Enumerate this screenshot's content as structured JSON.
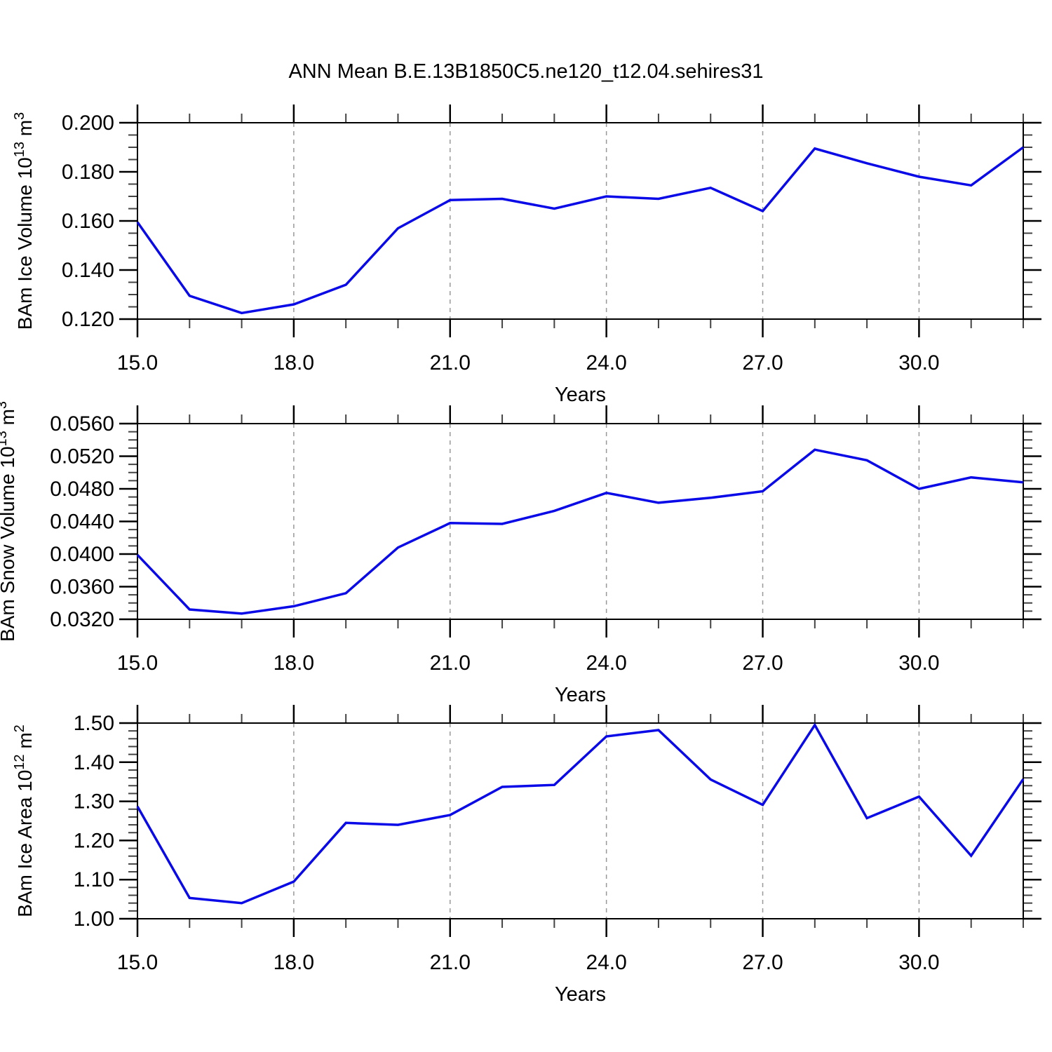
{
  "page": {
    "title": "ANN Mean B.E.13B1850C5.ne120_t12.04.sehires31",
    "background_color": "#ffffff",
    "line_color": "#0a0ae8",
    "grid_color": "#999999",
    "frame_color": "#000000"
  },
  "chart_data": [
    {
      "type": "line",
      "name": "ice-volume",
      "ylabel_plain": "BAm Ice Volume 10^13 m^3",
      "ylabel_parts": [
        {
          "text": "BAm Ice Volume 10",
          "sup": false
        },
        {
          "text": "13",
          "sup": true
        },
        {
          "text": " m",
          "sup": false
        },
        {
          "text": "3",
          "sup": true
        }
      ],
      "xlabel": "Years",
      "x": [
        15,
        16,
        17,
        18,
        19,
        20,
        21,
        22,
        23,
        24,
        25,
        26,
        27,
        28,
        29,
        30,
        31,
        32
      ],
      "values": [
        0.1595,
        0.1295,
        0.1225,
        0.126,
        0.134,
        0.157,
        0.1685,
        0.169,
        0.165,
        0.17,
        0.169,
        0.1735,
        0.164,
        0.1895,
        0.1835,
        0.178,
        0.1745,
        0.19
      ],
      "xlim": [
        15,
        32
      ],
      "ylim": [
        0.12,
        0.2
      ],
      "xticks": [
        {
          "v": 15,
          "label": "15.0"
        },
        {
          "v": 18,
          "label": "18.0"
        },
        {
          "v": 21,
          "label": "21.0"
        },
        {
          "v": 24,
          "label": "24.0"
        },
        {
          "v": 27,
          "label": "27.0"
        },
        {
          "v": 30,
          "label": "30.0"
        }
      ],
      "xtick_minor_step": 1,
      "yticks": [
        {
          "v": 0.12,
          "label": "0.120"
        },
        {
          "v": 0.14,
          "label": "0.140"
        },
        {
          "v": 0.16,
          "label": "0.160"
        },
        {
          "v": 0.18,
          "label": "0.180"
        },
        {
          "v": 0.2,
          "label": "0.200"
        }
      ],
      "ytick_minor_step": 0.005,
      "gridlines_x": [
        18,
        21,
        24,
        27,
        30
      ],
      "grid_on": true,
      "legend": "none"
    },
    {
      "type": "line",
      "name": "snow-volume",
      "ylabel_plain": "BAm Snow Volume 10^13 m^3",
      "ylabel_parts": [
        {
          "text": "BAm Snow Volume 10",
          "sup": false
        },
        {
          "text": "13",
          "sup": true
        },
        {
          "text": " m",
          "sup": false
        },
        {
          "text": "3",
          "sup": true
        }
      ],
      "xlabel": "Years",
      "x": [
        15,
        16,
        17,
        18,
        19,
        20,
        21,
        22,
        23,
        24,
        25,
        26,
        27,
        28,
        29,
        30,
        31,
        32
      ],
      "values": [
        0.0399,
        0.0332,
        0.0327,
        0.0336,
        0.0352,
        0.0408,
        0.0438,
        0.0437,
        0.0453,
        0.0475,
        0.0463,
        0.0469,
        0.0477,
        0.0528,
        0.0515,
        0.048,
        0.0494,
        0.0488
      ],
      "xlim": [
        15,
        32
      ],
      "ylim": [
        0.032,
        0.056
      ],
      "xticks": [
        {
          "v": 15,
          "label": "15.0"
        },
        {
          "v": 18,
          "label": "18.0"
        },
        {
          "v": 21,
          "label": "21.0"
        },
        {
          "v": 24,
          "label": "24.0"
        },
        {
          "v": 27,
          "label": "27.0"
        },
        {
          "v": 30,
          "label": "30.0"
        }
      ],
      "xtick_minor_step": 1,
      "yticks": [
        {
          "v": 0.032,
          "label": "0.0320"
        },
        {
          "v": 0.036,
          "label": "0.0360"
        },
        {
          "v": 0.04,
          "label": "0.0400"
        },
        {
          "v": 0.044,
          "label": "0.0440"
        },
        {
          "v": 0.048,
          "label": "0.0480"
        },
        {
          "v": 0.052,
          "label": "0.0520"
        },
        {
          "v": 0.056,
          "label": "0.0560"
        }
      ],
      "ytick_minor_step": 0.001,
      "gridlines_x": [
        18,
        21,
        24,
        27,
        30
      ],
      "grid_on": true,
      "legend": "none"
    },
    {
      "type": "line",
      "name": "ice-area",
      "ylabel_plain": "BAm Ice Area 10^12 m^2",
      "ylabel_parts": [
        {
          "text": "BAm Ice Area 10",
          "sup": false
        },
        {
          "text": "12",
          "sup": true
        },
        {
          "text": " m",
          "sup": false
        },
        {
          "text": "2",
          "sup": true
        }
      ],
      "xlabel": "Years",
      "x": [
        15,
        16,
        17,
        18,
        19,
        20,
        21,
        22,
        23,
        24,
        25,
        26,
        27,
        28,
        29,
        30,
        31,
        32
      ],
      "values": [
        1.287,
        1.053,
        1.04,
        1.095,
        1.245,
        1.24,
        1.265,
        1.337,
        1.342,
        1.466,
        1.482,
        1.356,
        1.291,
        1.495,
        1.257,
        1.312,
        1.161,
        1.357
      ],
      "xlim": [
        15,
        32
      ],
      "ylim": [
        1.0,
        1.5
      ],
      "xticks": [
        {
          "v": 15,
          "label": "15.0"
        },
        {
          "v": 18,
          "label": "18.0"
        },
        {
          "v": 21,
          "label": "21.0"
        },
        {
          "v": 24,
          "label": "24.0"
        },
        {
          "v": 27,
          "label": "27.0"
        },
        {
          "v": 30,
          "label": "30.0"
        }
      ],
      "xtick_minor_step": 1,
      "yticks": [
        {
          "v": 1.0,
          "label": "1.00"
        },
        {
          "v": 1.1,
          "label": "1.10"
        },
        {
          "v": 1.2,
          "label": "1.20"
        },
        {
          "v": 1.3,
          "label": "1.30"
        },
        {
          "v": 1.4,
          "label": "1.40"
        },
        {
          "v": 1.5,
          "label": "1.50"
        }
      ],
      "ytick_minor_step": 0.02,
      "gridlines_x": [
        18,
        21,
        24,
        27,
        30
      ],
      "grid_on": true,
      "legend": "none"
    }
  ]
}
